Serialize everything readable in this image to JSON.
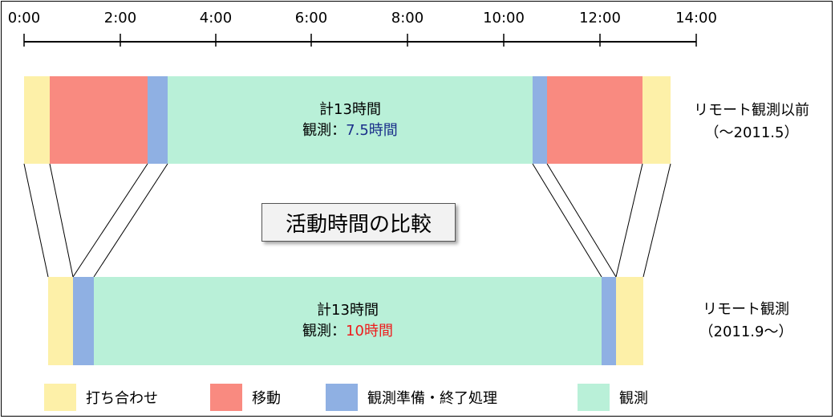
{
  "axis": {
    "ticks": [
      "0:00",
      "2:00",
      "4:00",
      "6:00",
      "8:00",
      "10:00",
      "12:00",
      "14:00"
    ]
  },
  "colors": {
    "meeting": "#fdf0a8",
    "travel": "#f98a80",
    "prep": "#8fb0e3",
    "observation": "#b9f0d8"
  },
  "top_bar": {
    "total": "計13時間",
    "obs_prefix": "観測：",
    "obs_value": "7.5時間",
    "obs_value_color": "#1a2f8a",
    "label_line1": "リモート観測以前",
    "label_line2": "（～2011.5）"
  },
  "bottom_bar": {
    "total": "計13時間",
    "obs_prefix": "観測：",
    "obs_value": "10時間",
    "obs_value_color": "#ee1c1c",
    "label_line1": "リモート観測",
    "label_line2": "（2011.9～）"
  },
  "title": "活動時間の比較",
  "legend": {
    "meeting": "打ち合わせ",
    "travel": "移動",
    "prep": "観測準備・終了処理",
    "observation": "観測"
  }
}
